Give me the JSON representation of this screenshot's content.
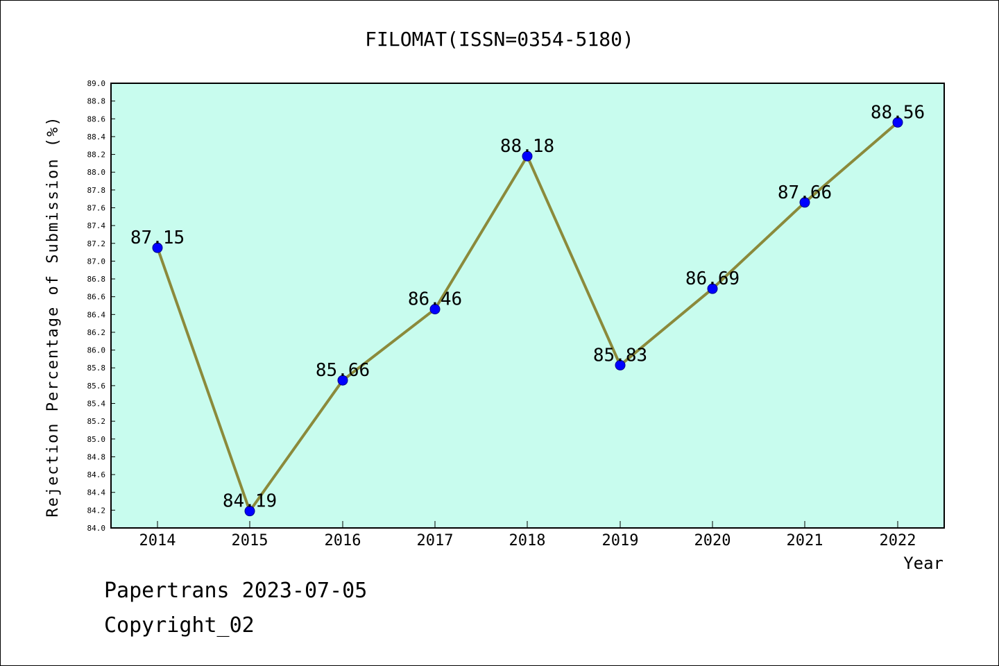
{
  "chart_data": {
    "type": "line",
    "title": "FILOMAT(ISSN=0354-5180)",
    "xlabel": "Year",
    "ylabel": "Rejection Percentage of Submission (%)",
    "x": [
      "2014",
      "2015",
      "2016",
      "2017",
      "2018",
      "2019",
      "2020",
      "2021",
      "2022"
    ],
    "series": [
      {
        "values": [
          87.15,
          84.19,
          85.66,
          86.46,
          88.18,
          85.83,
          86.69,
          87.66,
          88.56
        ]
      }
    ],
    "data_labels": [
      "87.15",
      "84.19",
      "85.66",
      "86.46",
      "88.18",
      "85.83",
      "86.69",
      "87.66",
      "88.56"
    ],
    "ylim": [
      84.0,
      89.0
    ],
    "y_ticks": [
      "84.0",
      "84.2",
      "84.4",
      "84.6",
      "84.8",
      "85.0",
      "85.2",
      "85.4",
      "85.6",
      "85.8",
      "86.0",
      "86.2",
      "86.4",
      "86.6",
      "86.8",
      "87.0",
      "87.2",
      "87.4",
      "87.6",
      "87.8",
      "88.0",
      "88.2",
      "88.4",
      "88.6",
      "88.8",
      "89.0"
    ],
    "grid": false,
    "legend": "none",
    "colors": {
      "plot_background": "#c8fcee",
      "line": "#8b8a3b",
      "marker": "#0000ff"
    }
  },
  "footer": {
    "line1": "Papertrans 2023-07-05",
    "line2": "Copyright_02"
  }
}
